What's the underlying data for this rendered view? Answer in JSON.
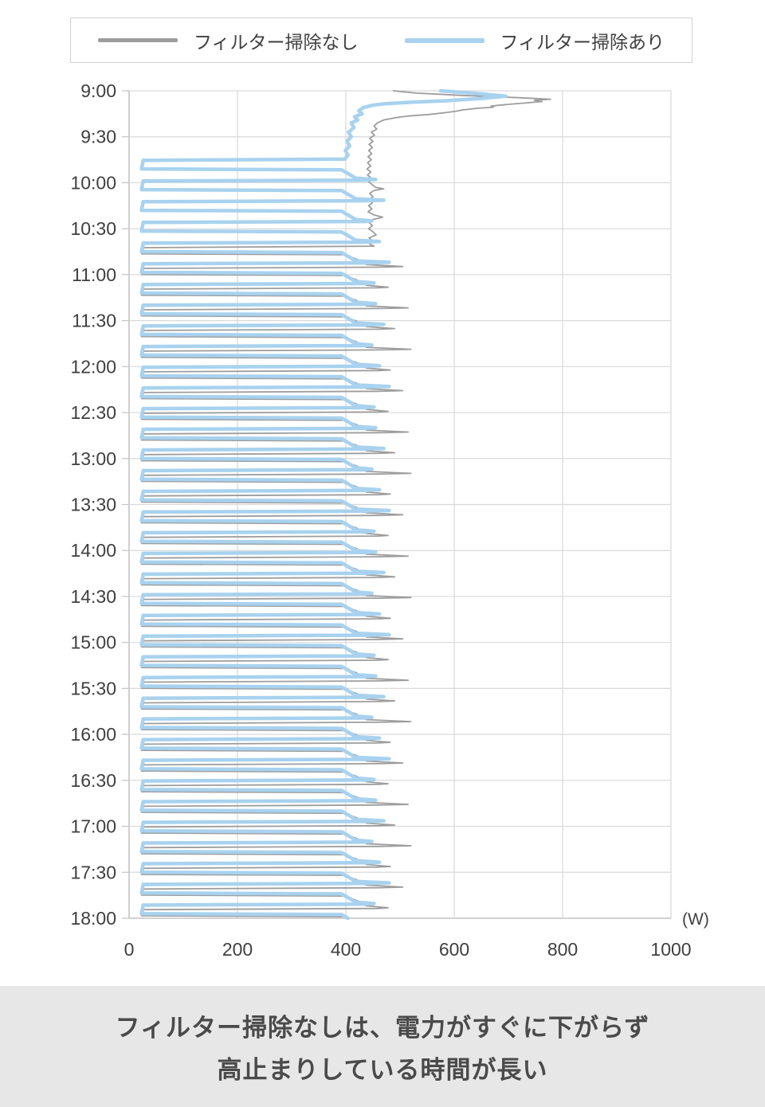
{
  "legend": {
    "items": [
      {
        "id": "no-cleaning",
        "label": "フィルター掃除なし",
        "color": "#9d9d9d"
      },
      {
        "id": "with-cleaning",
        "label": "フィルター掃除あり",
        "color": "#a8d2ef"
      }
    ]
  },
  "caption": {
    "line1": "フィルター掃除なしは、電力がすぐに下がらず",
    "line2": "高止まりしている時間が長い"
  },
  "colors": {
    "grid": "#d9d9d9",
    "axis": "#c3c3c3",
    "tick_text": "#3f3f3f",
    "caption_bg": "#e7e7e7",
    "caption_text": "#4a4a4a",
    "series_no_cleaning": "#9d9d9d",
    "series_with_cleaning": "#a8d2ef"
  },
  "chart_data": {
    "type": "line",
    "orientation": "time-on-vertical-axis-descending",
    "title": "",
    "x_axis": {
      "unit_label": "(W)",
      "min": 0,
      "max": 1000,
      "tick_values": [
        0,
        200,
        400,
        600,
        800,
        1000
      ],
      "tick_labels": [
        "0",
        "200",
        "400",
        "600",
        "800",
        "1000"
      ],
      "grid": true
    },
    "y_axis": {
      "start_time": "9:00",
      "end_time": "18:00",
      "duration_min": 540,
      "interval_min": 30,
      "tick_labels": [
        "9:00",
        "9:30",
        "10:00",
        "10:30",
        "11:00",
        "11:30",
        "12:00",
        "12:30",
        "13:00",
        "13:30",
        "14:00",
        "14:30",
        "15:00",
        "15:30",
        "16:00",
        "16:30",
        "17:00",
        "17:30",
        "18:00"
      ],
      "grid": true
    },
    "legend_position": "top",
    "series": [
      {
        "id": "no-cleaning",
        "name": "フィルター掃除なし",
        "color": "#9d9d9d",
        "stroke_width": 1.8,
        "points_format": "[minutes_after_9:00, watts]",
        "lead_points": [
          [
            0,
            488
          ],
          [
            1.5,
            530
          ],
          [
            3,
            615
          ],
          [
            4.5,
            720
          ],
          [
            5.5,
            778
          ],
          [
            6.2,
            748
          ],
          [
            7,
            762
          ],
          [
            8,
            730
          ],
          [
            9,
            695
          ],
          [
            10,
            668
          ],
          [
            10.7,
            672
          ],
          [
            11.5,
            640
          ],
          [
            12.5,
            615
          ],
          [
            13.5,
            600
          ],
          [
            14.5,
            578
          ],
          [
            15.5,
            552
          ],
          [
            16.5,
            515
          ],
          [
            17.5,
            492
          ],
          [
            19,
            470
          ],
          [
            21,
            458
          ],
          [
            23,
            452
          ],
          [
            25,
            457
          ],
          [
            27,
            447
          ],
          [
            29,
            453
          ],
          [
            31,
            444
          ],
          [
            33,
            450
          ],
          [
            35,
            443
          ],
          [
            37,
            449
          ],
          [
            39,
            442
          ],
          [
            41,
            448
          ],
          [
            43,
            441
          ],
          [
            45,
            447
          ],
          [
            47,
            440
          ],
          [
            49,
            446
          ],
          [
            51,
            439
          ],
          [
            53,
            446
          ],
          [
            55,
            440
          ],
          [
            57,
            447
          ],
          [
            59,
            441
          ],
          [
            61,
            448
          ],
          [
            63,
            455
          ],
          [
            64,
            470
          ],
          [
            65,
            452
          ],
          [
            67,
            444
          ],
          [
            69,
            450
          ],
          [
            71,
            443
          ],
          [
            73,
            449
          ],
          [
            75,
            442
          ],
          [
            77,
            448
          ],
          [
            79,
            441
          ],
          [
            81,
            452
          ],
          [
            82.5,
            468
          ],
          [
            84,
            450
          ],
          [
            86,
            443
          ],
          [
            88,
            449
          ],
          [
            90,
            442
          ],
          [
            92,
            450
          ],
          [
            94,
            456
          ],
          [
            96,
            443
          ],
          [
            98,
            449
          ],
          [
            100,
            444
          ],
          [
            101.4,
            452
          ]
        ],
        "cycles": {
          "starts": [
            101.9,
            115.4,
            128.9,
            142.4,
            155.9,
            169.4,
            182.9,
            196.4,
            209.9,
            223.4,
            236.9,
            250.4,
            263.9,
            277.4,
            290.9,
            304.4,
            317.9,
            331.4,
            344.9,
            358.4,
            371.9,
            385.4,
            398.9,
            412.4,
            425.9,
            439.4,
            452.9,
            466.4,
            479.9,
            493.4,
            506.9,
            520.4,
            533.9
          ],
          "offsets": [
            [
              0.5,
              27
            ],
            [
              4.5,
              23
            ],
            [
              5.1,
              398
            ],
            [
              8,
              420
            ],
            [
              11.5,
              438
            ],
            [
              12.8,
              "spike"
            ],
            [
              13.2,
              460
            ]
          ],
          "spike_values": [
            505,
            478,
            515,
            490,
            520,
            482
          ]
        }
      },
      {
        "id": "with-cleaning",
        "name": "フィルター掃除あり",
        "color": "#a8d2ef",
        "stroke_width": 4.5,
        "points_format": "[minutes_after_9:00, watts]",
        "lead_points": [
          [
            0,
            575
          ],
          [
            2,
            648
          ],
          [
            3.5,
            695
          ],
          [
            5,
            650
          ],
          [
            6.5,
            585
          ],
          [
            7.5,
            520
          ],
          [
            8.5,
            470
          ],
          [
            9.5,
            448
          ],
          [
            11,
            432
          ],
          [
            13,
            424
          ],
          [
            15,
            430
          ],
          [
            17,
            416
          ],
          [
            19,
            422
          ],
          [
            21,
            410
          ],
          [
            24,
            415
          ],
          [
            27,
            405
          ],
          [
            30,
            410
          ],
          [
            33,
            402
          ],
          [
            36,
            407
          ],
          [
            39,
            399
          ],
          [
            42,
            404
          ],
          [
            44.6,
            398
          ]
        ],
        "cycles": {
          "starts": [
            45,
            58.5,
            72,
            85.5,
            99,
            112.5,
            126,
            139.5,
            153,
            166.5,
            180,
            193.5,
            207,
            220.5,
            234,
            247.5,
            261,
            274.5,
            288,
            301.5,
            315,
            328.5,
            342,
            355.5,
            369,
            382.5,
            396,
            409.5,
            423,
            436.5,
            450,
            463.5,
            477,
            490.5,
            504,
            517.5,
            531
          ],
          "offsets": [
            [
              0.4,
              26
            ],
            [
              6,
              23
            ],
            [
              6.6,
              392
            ],
            [
              9,
              404
            ],
            [
              12,
              418
            ],
            [
              12.9,
              "spike"
            ],
            [
              13.3,
              434
            ]
          ],
          "spike_values": [
            455,
            470,
            448,
            462,
            480,
            452
          ]
        }
      }
    ]
  }
}
